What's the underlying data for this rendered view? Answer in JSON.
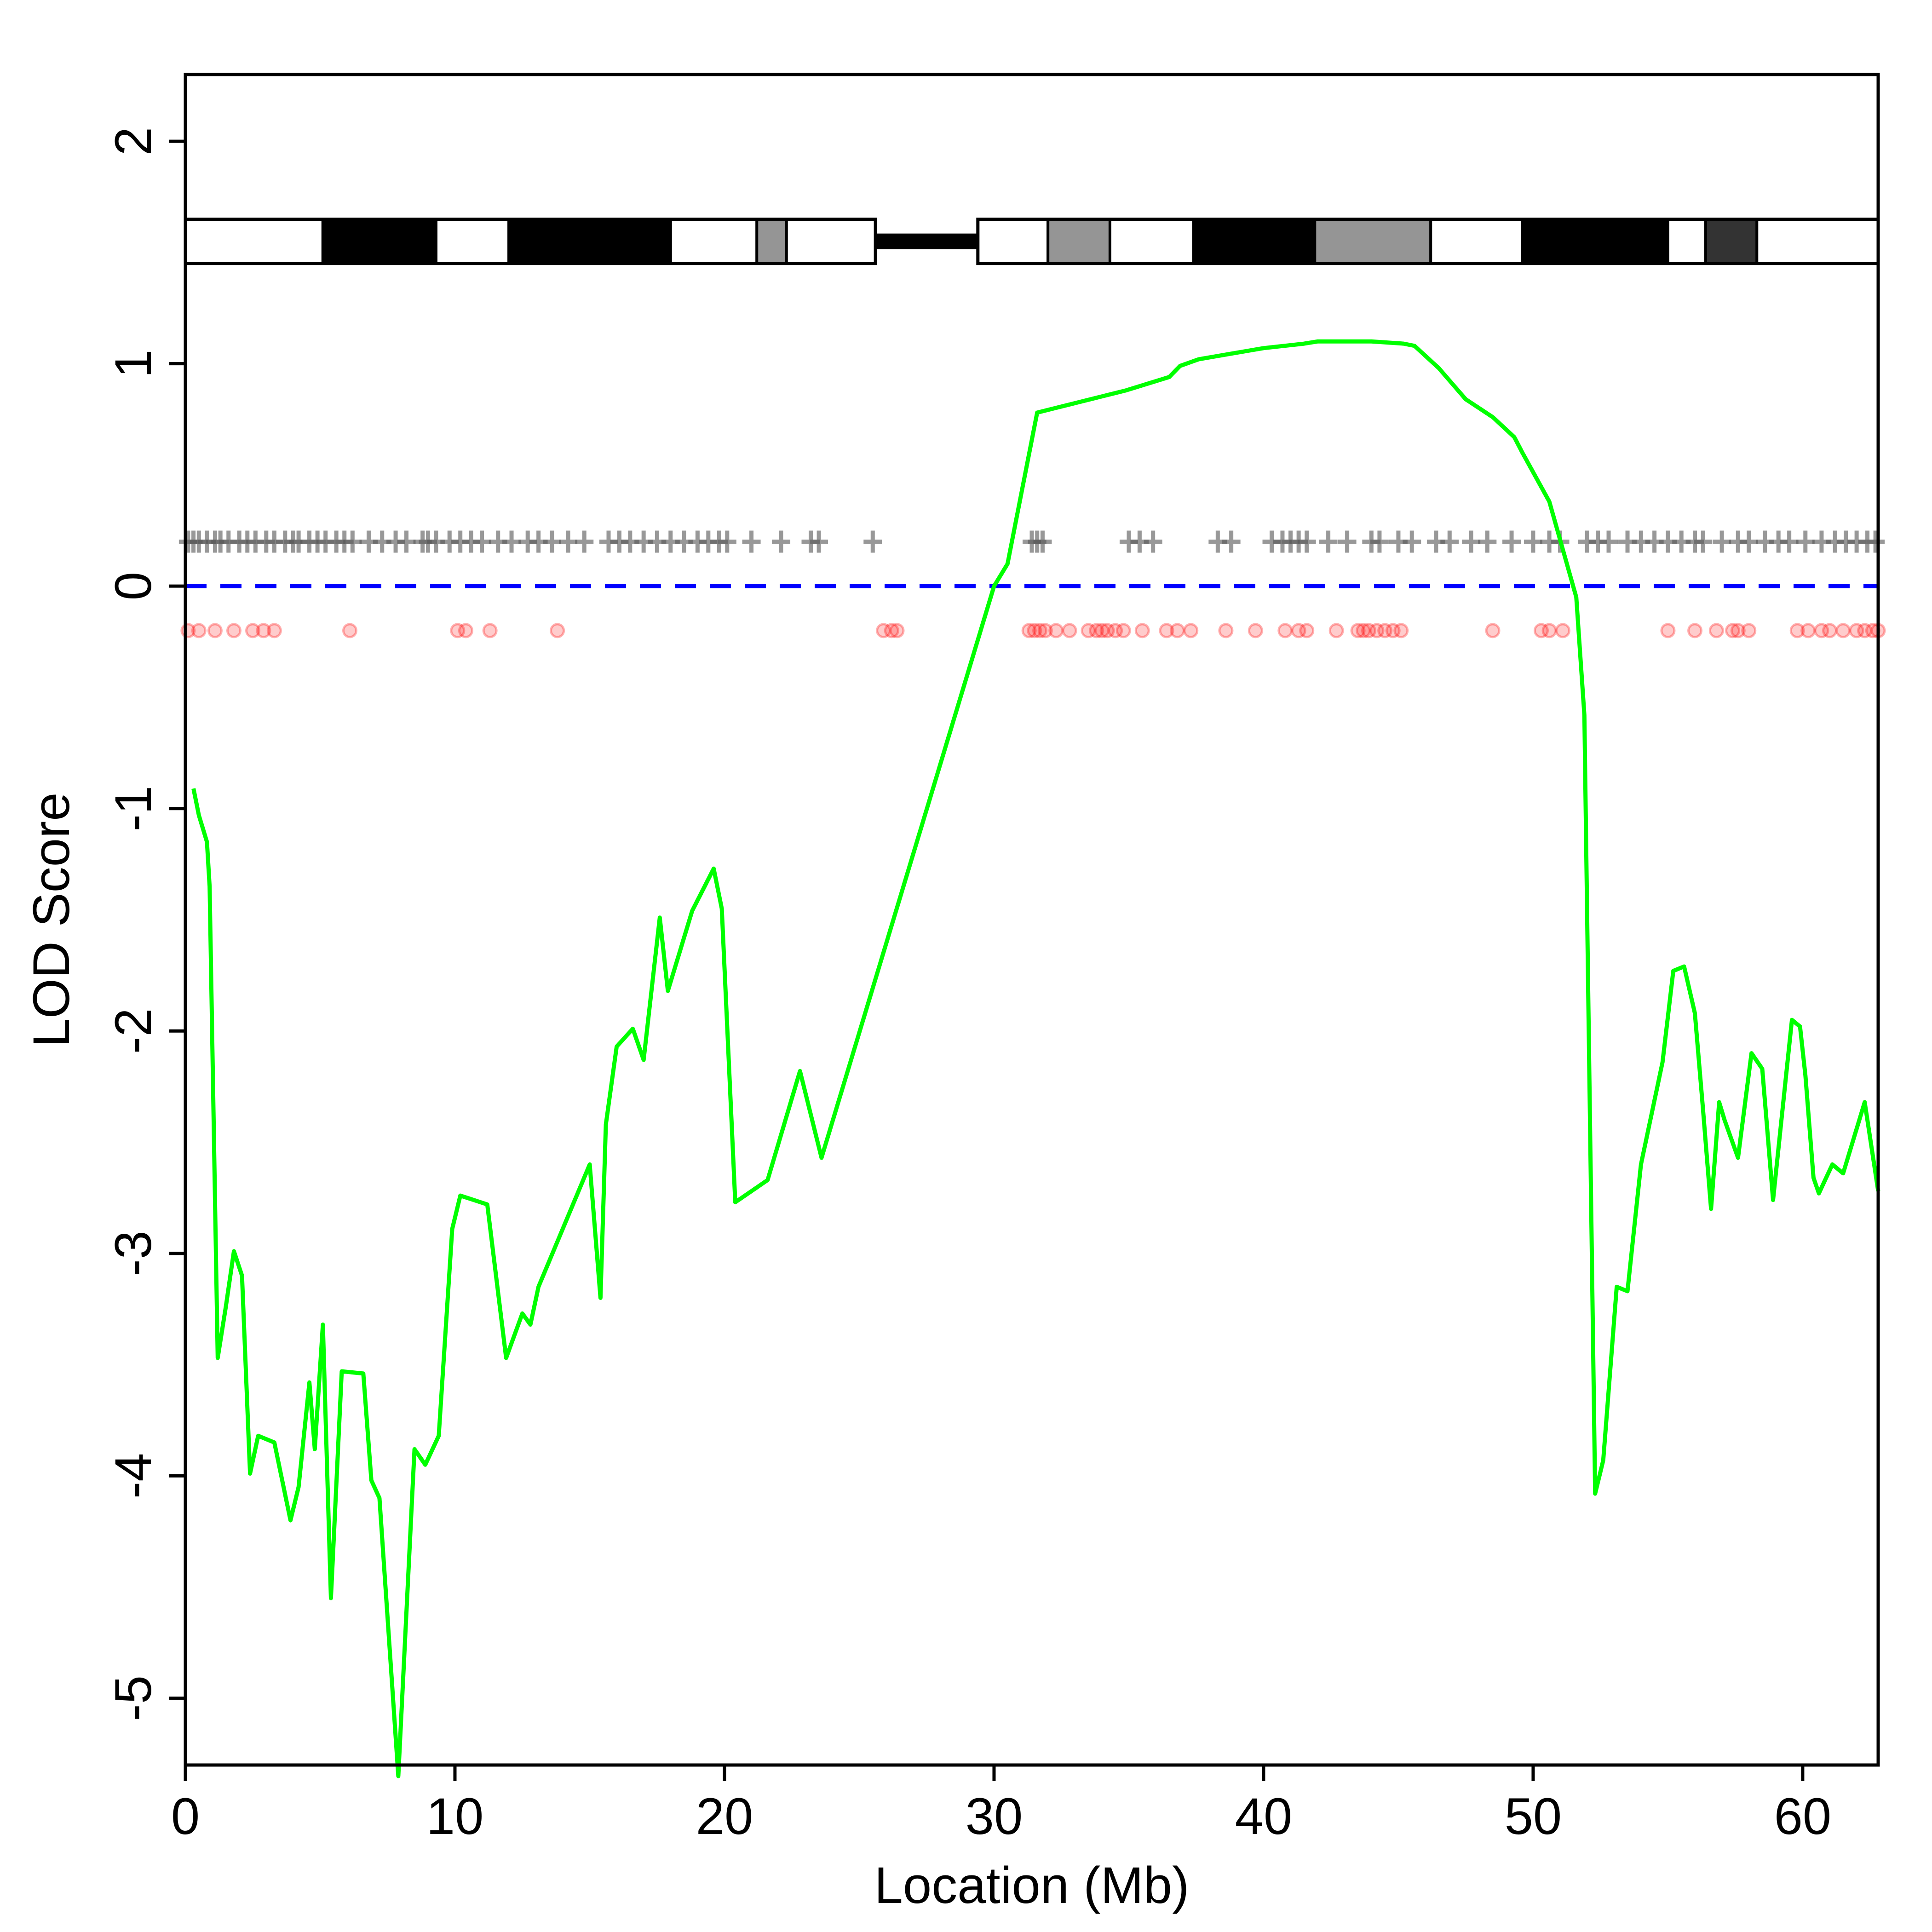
{
  "chart_data": {
    "type": "line",
    "title": "",
    "xlabel": "Location (Mb)",
    "ylabel": "LOD Score",
    "xlim": [
      0,
      62.8
    ],
    "ylim": [
      -5.3,
      2.3
    ],
    "xticks": [
      0,
      10,
      20,
      30,
      40,
      50,
      60
    ],
    "yticks": [
      -5,
      -4,
      -3,
      -2,
      -1,
      0,
      1,
      2
    ],
    "grid": false,
    "legend": "none",
    "threshold": {
      "y": 0,
      "color": "#0000ff",
      "style": "dashed"
    },
    "series": [
      {
        "color": "#00ff00",
        "x": [
          0.3,
          0.5,
          0.8,
          0.9,
          1.2,
          1.5,
          1.8,
          2.1,
          2.4,
          2.7,
          3.3,
          3.9,
          4.2,
          4.6,
          4.8,
          5.1,
          5.4,
          5.8,
          6.6,
          6.9,
          7.2,
          7.9,
          8.5,
          8.9,
          9.4,
          9.9,
          10.2,
          11.2,
          11.9,
          12.5,
          12.8,
          13.1,
          15.0,
          15.4,
          15.6,
          16.0,
          16.6,
          17.0,
          17.6,
          17.9,
          18.8,
          19.6,
          19.9,
          20.4,
          21.6,
          22.8,
          23.6,
          30.0,
          30.5,
          31.6,
          34.9,
          36.5,
          36.9,
          37.6,
          40.0,
          41.5,
          42.0,
          44.0,
          45.2,
          45.6,
          46.5,
          47.5,
          48.5,
          49.3,
          49.6,
          50.6,
          51.6,
          51.9,
          52.3,
          52.6,
          53.1,
          53.5,
          54.0,
          54.8,
          55.2,
          55.6,
          56.0,
          56.3,
          56.6,
          56.9,
          57.1,
          57.6,
          58.1,
          58.5,
          58.9,
          59.4,
          59.6,
          59.9,
          60.1,
          60.4,
          60.6,
          61.1,
          61.5,
          62.3,
          62.8
        ],
        "y": [
          -0.91,
          -1.03,
          -1.15,
          -1.35,
          -3.47,
          -3.24,
          -2.99,
          -3.1,
          -3.99,
          -3.82,
          -3.85,
          -4.2,
          -4.05,
          -3.58,
          -3.88,
          -3.32,
          -4.55,
          -3.53,
          -3.54,
          -4.02,
          -4.1,
          -5.35,
          -3.88,
          -3.95,
          -3.82,
          -2.89,
          -2.74,
          -2.78,
          -3.47,
          -3.27,
          -3.32,
          -3.15,
          -2.6,
          -3.2,
          -2.42,
          -2.07,
          -1.99,
          -2.13,
          -1.49,
          -1.82,
          -1.46,
          -1.27,
          -1.45,
          -2.77,
          -2.67,
          -2.18,
          -2.57,
          0.0,
          0.1,
          0.78,
          0.88,
          0.94,
          0.99,
          1.02,
          1.07,
          1.09,
          1.1,
          1.1,
          1.09,
          1.08,
          0.98,
          0.84,
          0.76,
          0.67,
          0.6,
          0.38,
          -0.05,
          -0.58,
          -4.08,
          -3.93,
          -3.15,
          -3.17,
          -2.6,
          -2.14,
          -1.73,
          -1.71,
          -1.92,
          -2.35,
          -2.8,
          -2.32,
          -2.4,
          -2.57,
          -2.1,
          -2.17,
          -2.76,
          -2.18,
          -1.95,
          -1.98,
          -2.2,
          -2.66,
          -2.73,
          -2.6,
          -2.64,
          -2.32,
          -2.72
        ]
      }
    ],
    "chromosome_ideogram": {
      "y": 1.55,
      "bands": [
        {
          "start": 0,
          "end": 5.1,
          "fill": "#ffffff"
        },
        {
          "start": 5.1,
          "end": 9.3,
          "fill": "#000000"
        },
        {
          "start": 9.3,
          "end": 12.0,
          "fill": "#ffffff"
        },
        {
          "start": 12.0,
          "end": 18.0,
          "fill": "#000000"
        },
        {
          "start": 18.0,
          "end": 21.2,
          "fill": "#ffffff"
        },
        {
          "start": 21.2,
          "end": 22.3,
          "fill": "#959595"
        },
        {
          "start": 22.3,
          "end": 25.6,
          "fill": "#ffffff"
        },
        {
          "start": 29.4,
          "end": 32.0,
          "fill": "#ffffff"
        },
        {
          "start": 32.0,
          "end": 34.3,
          "fill": "#959595"
        },
        {
          "start": 34.3,
          "end": 37.4,
          "fill": "#ffffff"
        },
        {
          "start": 37.4,
          "end": 41.9,
          "fill": "#000000"
        },
        {
          "start": 41.9,
          "end": 46.2,
          "fill": "#959595"
        },
        {
          "start": 46.2,
          "end": 49.6,
          "fill": "#ffffff"
        },
        {
          "start": 49.6,
          "end": 55.0,
          "fill": "#000000"
        },
        {
          "start": 55.0,
          "end": 56.4,
          "fill": "#ffffff"
        },
        {
          "start": 56.4,
          "end": 58.3,
          "fill": "#333333"
        },
        {
          "start": 58.3,
          "end": 62.8,
          "fill": "#ffffff"
        }
      ],
      "centromere": [
        25.6,
        29.4
      ]
    },
    "marker_track": {
      "y": 0.2,
      "color": "#555555",
      "positions": [
        0.1,
        0.3,
        0.5,
        0.8,
        1.1,
        1.3,
        1.6,
        2.0,
        2.3,
        2.6,
        3.0,
        3.3,
        3.7,
        4.0,
        4.2,
        4.6,
        4.9,
        5.2,
        5.6,
        5.9,
        6.2,
        6.8,
        7.3,
        7.8,
        8.2,
        8.8,
        9.0,
        9.3,
        9.8,
        10.2,
        10.6,
        11.0,
        11.6,
        12.1,
        12.7,
        13.1,
        13.6,
        14.2,
        14.8,
        15.7,
        16.1,
        16.5,
        17.0,
        17.5,
        18.0,
        18.5,
        19.0,
        19.4,
        19.8,
        20.1,
        21.0,
        22.1,
        23.2,
        23.5,
        25.5,
        31.4,
        31.6,
        31.8,
        35.0,
        35.4,
        35.9,
        38.3,
        38.8,
        40.3,
        40.7,
        41.0,
        41.3,
        41.6,
        42.4,
        43.1,
        44.0,
        44.3,
        45.0,
        45.5,
        46.4,
        46.9,
        47.7,
        48.3,
        49.2,
        50.0,
        50.6,
        51.0,
        52.0,
        52.4,
        52.8,
        53.5,
        54.0,
        54.5,
        55.0,
        55.5,
        56.0,
        56.3,
        57.0,
        57.6,
        58.0,
        58.6,
        59.1,
        59.5,
        60.1,
        60.7,
        61.2,
        61.6,
        62.0,
        62.4,
        62.7
      ]
    },
    "snp_track": {
      "y": -0.2,
      "color": "#ff0000",
      "positions": [
        0.1,
        0.5,
        1.1,
        1.8,
        2.5,
        2.9,
        3.3,
        6.1,
        10.1,
        10.4,
        11.3,
        13.8,
        25.9,
        26.2,
        26.4,
        31.3,
        31.5,
        31.7,
        31.9,
        32.3,
        32.8,
        33.5,
        33.8,
        34.0,
        34.2,
        34.5,
        34.8,
        35.5,
        36.4,
        36.8,
        37.3,
        38.6,
        39.7,
        40.8,
        41.3,
        41.6,
        42.7,
        43.5,
        43.7,
        43.9,
        44.2,
        44.5,
        44.8,
        45.1,
        48.5,
        50.3,
        50.6,
        51.1,
        55.0,
        56.0,
        56.8,
        57.4,
        57.6,
        58.0,
        59.8,
        60.2,
        60.7,
        61.0,
        61.5,
        62.0,
        62.3,
        62.6,
        62.8
      ]
    }
  }
}
